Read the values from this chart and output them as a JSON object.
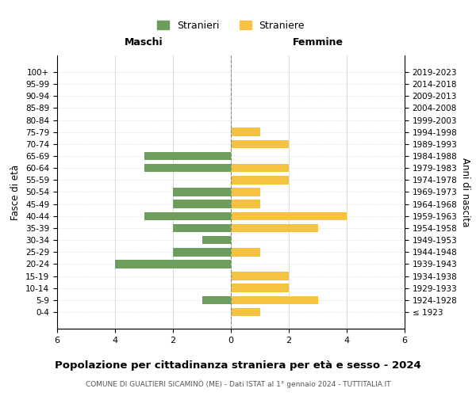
{
  "age_groups": [
    "100+",
    "95-99",
    "90-94",
    "85-89",
    "80-84",
    "75-79",
    "70-74",
    "65-69",
    "60-64",
    "55-59",
    "50-54",
    "45-49",
    "40-44",
    "35-39",
    "30-34",
    "25-29",
    "20-24",
    "15-19",
    "10-14",
    "5-9",
    "0-4"
  ],
  "birth_years": [
    "≤ 1923",
    "1924-1928",
    "1929-1933",
    "1934-1938",
    "1939-1943",
    "1944-1948",
    "1949-1953",
    "1954-1958",
    "1959-1963",
    "1964-1968",
    "1969-1973",
    "1974-1978",
    "1979-1983",
    "1984-1988",
    "1989-1993",
    "1994-1998",
    "1999-2003",
    "2004-2008",
    "2009-2013",
    "2014-2018",
    "2019-2023"
  ],
  "maschi": [
    0,
    0,
    0,
    0,
    0,
    0,
    0,
    3,
    3,
    0,
    2,
    2,
    3,
    2,
    1,
    2,
    4,
    0,
    0,
    1,
    0
  ],
  "femmine": [
    0,
    0,
    0,
    0,
    0,
    1,
    2,
    0,
    2,
    2,
    1,
    1,
    4,
    3,
    0,
    1,
    0,
    2,
    2,
    3,
    1
  ],
  "maschi_color": "#6e9e5e",
  "femmine_color": "#f5c242",
  "title": "Popolazione per cittadinanza straniera per età e sesso - 2024",
  "subtitle": "COMUNE DI GUALTIERI SICAMINÒ (ME) - Dati ISTAT al 1° gennaio 2024 - TUTTITALIA.IT",
  "ylabel_left": "Fasce di età",
  "ylabel_right": "Anni di nascita",
  "legend_maschi": "Stranieri",
  "legend_femmine": "Straniere",
  "xlim": 6,
  "header_maschi": "Maschi",
  "header_femmine": "Femmine",
  "background_color": "#ffffff",
  "grid_color": "#cccccc"
}
